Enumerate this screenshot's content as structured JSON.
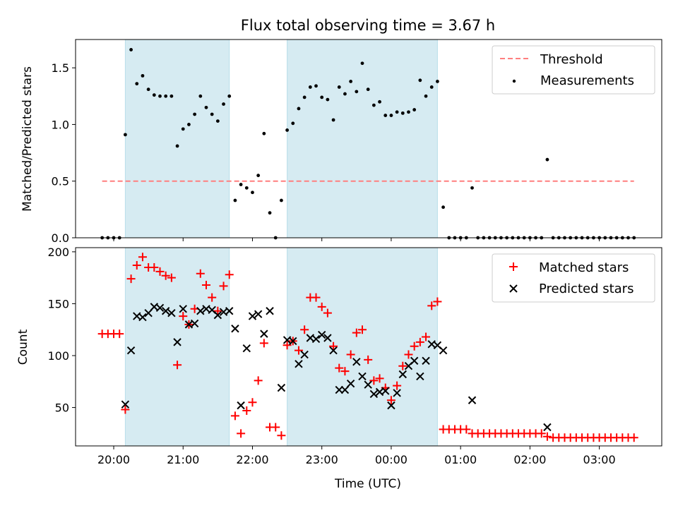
{
  "chart_data": [
    {
      "type": "scatter",
      "title": "Flux total observing time = 3.67 h",
      "ylabel": "Matched/Predicted stars",
      "ylim": [
        0,
        1.75
      ],
      "yticks": [
        "0.0",
        "0.5",
        "1.0",
        "1.5"
      ],
      "xlim_hours": [
        19.45,
        27.9
      ],
      "threshold": {
        "name": "Threshold",
        "value": 0.5,
        "x_start": "19:50",
        "x_end": "03:30",
        "color": "#ff7f7f"
      },
      "shaded_intervals": [
        [
          "20:10",
          "21:40"
        ],
        [
          "22:30",
          "00:40"
        ]
      ],
      "legend": {
        "placement": "top-right",
        "entries": [
          "Threshold",
          "Measurements"
        ]
      },
      "series": [
        {
          "name": "Measurements",
          "marker": "dot",
          "color": "#000000",
          "points": [
            [
              "19:50",
              0
            ],
            [
              "19:55",
              0
            ],
            [
              "20:00",
              0
            ],
            [
              "20:05",
              0
            ],
            [
              "20:10",
              0.91
            ],
            [
              "20:15",
              1.66
            ],
            [
              "20:20",
              1.36
            ],
            [
              "20:25",
              1.43
            ],
            [
              "20:30",
              1.31
            ],
            [
              "20:35",
              1.26
            ],
            [
              "20:40",
              1.25
            ],
            [
              "20:45",
              1.25
            ],
            [
              "20:50",
              1.25
            ],
            [
              "20:55",
              0.81
            ],
            [
              "21:00",
              0.96
            ],
            [
              "21:05",
              1.0
            ],
            [
              "21:10",
              1.09
            ],
            [
              "21:15",
              1.25
            ],
            [
              "21:20",
              1.15
            ],
            [
              "21:25",
              1.09
            ],
            [
              "21:30",
              1.03
            ],
            [
              "21:35",
              1.18
            ],
            [
              "21:40",
              1.25
            ],
            [
              "21:45",
              0.33
            ],
            [
              "21:50",
              0.47
            ],
            [
              "21:55",
              0.44
            ],
            [
              "22:00",
              0.4
            ],
            [
              "22:05",
              0.55
            ],
            [
              "22:10",
              0.92
            ],
            [
              "22:15",
              0.22
            ],
            [
              "22:20",
              0
            ],
            [
              "22:25",
              0.33
            ],
            [
              "22:30",
              0.95
            ],
            [
              "22:35",
              1.01
            ],
            [
              "22:40",
              1.14
            ],
            [
              "22:45",
              1.24
            ],
            [
              "22:50",
              1.33
            ],
            [
              "22:55",
              1.34
            ],
            [
              "23:00",
              1.24
            ],
            [
              "23:05",
              1.22
            ],
            [
              "23:10",
              1.04
            ],
            [
              "23:15",
              1.33
            ],
            [
              "23:20",
              1.27
            ],
            [
              "23:25",
              1.38
            ],
            [
              "23:30",
              1.29
            ],
            [
              "23:35",
              1.54
            ],
            [
              "23:40",
              1.31
            ],
            [
              "23:45",
              1.17
            ],
            [
              "23:50",
              1.2
            ],
            [
              "23:55",
              1.08
            ],
            [
              "00:00",
              1.08
            ],
            [
              "00:05",
              1.11
            ],
            [
              "00:10",
              1.1
            ],
            [
              "00:15",
              1.11
            ],
            [
              "00:20",
              1.13
            ],
            [
              "00:25",
              1.39
            ],
            [
              "00:30",
              1.25
            ],
            [
              "00:35",
              1.33
            ],
            [
              "00:40",
              1.38
            ],
            [
              "00:45",
              0.27
            ],
            [
              "00:50",
              0
            ],
            [
              "00:55",
              0
            ],
            [
              "01:00",
              0
            ],
            [
              "01:05",
              0
            ],
            [
              "01:10",
              0.44
            ],
            [
              "01:15",
              0
            ],
            [
              "01:20",
              0
            ],
            [
              "01:25",
              0
            ],
            [
              "01:30",
              0
            ],
            [
              "01:35",
              0
            ],
            [
              "01:40",
              0
            ],
            [
              "01:45",
              0
            ],
            [
              "01:50",
              0
            ],
            [
              "01:55",
              0
            ],
            [
              "02:00",
              0
            ],
            [
              "02:05",
              0
            ],
            [
              "02:10",
              0
            ],
            [
              "02:15",
              0.69
            ],
            [
              "02:20",
              0
            ],
            [
              "02:25",
              0
            ],
            [
              "02:30",
              0
            ],
            [
              "02:35",
              0
            ],
            [
              "02:40",
              0
            ],
            [
              "02:45",
              0
            ],
            [
              "02:50",
              0
            ],
            [
              "02:55",
              0
            ],
            [
              "03:00",
              0
            ],
            [
              "03:05",
              0
            ],
            [
              "03:10",
              0
            ],
            [
              "03:15",
              0
            ],
            [
              "03:20",
              0
            ],
            [
              "03:25",
              0
            ],
            [
              "03:30",
              0
            ]
          ]
        }
      ]
    },
    {
      "type": "scatter",
      "xlabel": "Time (UTC)",
      "ylabel": "Count",
      "ylim": [
        13,
        204
      ],
      "yticks": [
        "50",
        "100",
        "150",
        "200"
      ],
      "xticks": [
        "20:00",
        "21:00",
        "22:00",
        "23:00",
        "00:00",
        "01:00",
        "02:00",
        "03:00"
      ],
      "xlim_hours": [
        19.45,
        27.9
      ],
      "shaded_intervals": [
        [
          "20:10",
          "21:40"
        ],
        [
          "22:30",
          "00:40"
        ]
      ],
      "legend": {
        "placement": "top-right",
        "entries": [
          "Matched stars",
          "Predicted stars"
        ]
      },
      "series": [
        {
          "name": "Matched stars",
          "marker": "plus",
          "color": "#ff0000",
          "points": [
            [
              "19:50",
              121
            ],
            [
              "19:55",
              121
            ],
            [
              "20:00",
              121
            ],
            [
              "20:05",
              121
            ],
            [
              "20:10",
              48
            ],
            [
              "20:15",
              174
            ],
            [
              "20:20",
              187
            ],
            [
              "20:25",
              195
            ],
            [
              "20:30",
              185
            ],
            [
              "20:35",
              185
            ],
            [
              "20:40",
              181
            ],
            [
              "20:45",
              177
            ],
            [
              "20:50",
              175
            ],
            [
              "20:55",
              91
            ],
            [
              "21:00",
              138
            ],
            [
              "21:05",
              130
            ],
            [
              "21:10",
              145
            ],
            [
              "21:15",
              179
            ],
            [
              "21:20",
              168
            ],
            [
              "21:25",
              156
            ],
            [
              "21:30",
              143
            ],
            [
              "21:35",
              167
            ],
            [
              "21:40",
              178
            ],
            [
              "21:45",
              42
            ],
            [
              "21:50",
              25
            ],
            [
              "21:55",
              47
            ],
            [
              "22:00",
              55
            ],
            [
              "22:05",
              76
            ],
            [
              "22:10",
              112
            ],
            [
              "22:15",
              31
            ],
            [
              "22:20",
              31
            ],
            [
              "22:25",
              23
            ],
            [
              "22:30",
              110
            ],
            [
              "22:35",
              114
            ],
            [
              "22:40",
              105
            ],
            [
              "22:45",
              125
            ],
            [
              "22:50",
              156
            ],
            [
              "22:55",
              156
            ],
            [
              "23:00",
              147
            ],
            [
              "23:05",
              141
            ],
            [
              "23:10",
              109
            ],
            [
              "23:15",
              88
            ],
            [
              "23:20",
              85
            ],
            [
              "23:25",
              101
            ],
            [
              "23:30",
              122
            ],
            [
              "23:35",
              125
            ],
            [
              "23:40",
              96
            ],
            [
              "23:45",
              76
            ],
            [
              "23:50",
              78
            ],
            [
              "23:55",
              69
            ],
            [
              "00:00",
              57
            ],
            [
              "00:05",
              71
            ],
            [
              "00:10",
              90
            ],
            [
              "00:15",
              101
            ],
            [
              "00:20",
              109
            ],
            [
              "00:25",
              113
            ],
            [
              "00:30",
              118
            ],
            [
              "00:35",
              148
            ],
            [
              "00:40",
              152
            ],
            [
              "00:45",
              29
            ],
            [
              "00:50",
              29
            ],
            [
              "00:55",
              29
            ],
            [
              "01:00",
              29
            ],
            [
              "01:05",
              29
            ],
            [
              "01:10",
              25
            ],
            [
              "01:15",
              25
            ],
            [
              "01:20",
              25
            ],
            [
              "01:25",
              25
            ],
            [
              "01:30",
              25
            ],
            [
              "01:35",
              25
            ],
            [
              "01:40",
              25
            ],
            [
              "01:45",
              25
            ],
            [
              "01:50",
              25
            ],
            [
              "01:55",
              25
            ],
            [
              "02:00",
              25
            ],
            [
              "02:05",
              25
            ],
            [
              "02:10",
              25
            ],
            [
              "02:15",
              22
            ],
            [
              "02:20",
              21
            ],
            [
              "02:25",
              21
            ],
            [
              "02:30",
              21
            ],
            [
              "02:35",
              21
            ],
            [
              "02:40",
              21
            ],
            [
              "02:45",
              21
            ],
            [
              "02:50",
              21
            ],
            [
              "02:55",
              21
            ],
            [
              "03:00",
              21
            ],
            [
              "03:05",
              21
            ],
            [
              "03:10",
              21
            ],
            [
              "03:15",
              21
            ],
            [
              "03:20",
              21
            ],
            [
              "03:25",
              21
            ],
            [
              "03:30",
              21
            ]
          ]
        },
        {
          "name": "Predicted stars",
          "marker": "x",
          "color": "#000000",
          "points": [
            [
              "20:10",
              53
            ],
            [
              "20:15",
              105
            ],
            [
              "20:20",
              138
            ],
            [
              "20:25",
              137
            ],
            [
              "20:30",
              141
            ],
            [
              "20:35",
              147
            ],
            [
              "20:40",
              146
            ],
            [
              "20:45",
              143
            ],
            [
              "20:50",
              141
            ],
            [
              "20:55",
              113
            ],
            [
              "21:00",
              145
            ],
            [
              "21:05",
              130
            ],
            [
              "21:10",
              131
            ],
            [
              "21:15",
              143
            ],
            [
              "21:20",
              145
            ],
            [
              "21:25",
              144
            ],
            [
              "21:30",
              139
            ],
            [
              "21:35",
              142
            ],
            [
              "21:40",
              143
            ],
            [
              "21:45",
              126
            ],
            [
              "21:50",
              52
            ],
            [
              "21:55",
              107
            ],
            [
              "22:00",
              138
            ],
            [
              "22:05",
              140
            ],
            [
              "22:10",
              121
            ],
            [
              "22:15",
              143
            ],
            [
              "22:25",
              69
            ],
            [
              "22:30",
              115
            ],
            [
              "22:35",
              114
            ],
            [
              "22:40",
              92
            ],
            [
              "22:45",
              101
            ],
            [
              "22:50",
              117
            ],
            [
              "22:55",
              116
            ],
            [
              "23:00",
              120
            ],
            [
              "23:05",
              117
            ],
            [
              "23:10",
              105
            ],
            [
              "23:15",
              67
            ],
            [
              "23:20",
              67
            ],
            [
              "23:25",
              73
            ],
            [
              "23:30",
              94
            ],
            [
              "23:35",
              80
            ],
            [
              "23:40",
              72
            ],
            [
              "23:45",
              63
            ],
            [
              "23:50",
              65
            ],
            [
              "23:55",
              66
            ],
            [
              "00:00",
              52
            ],
            [
              "00:05",
              64
            ],
            [
              "00:10",
              82
            ],
            [
              "00:15",
              90
            ],
            [
              "00:20",
              95
            ],
            [
              "00:25",
              80
            ],
            [
              "00:30",
              95
            ],
            [
              "00:35",
              111
            ],
            [
              "00:40",
              110
            ],
            [
              "00:45",
              105
            ],
            [
              "01:10",
              57
            ],
            [
              "02:15",
              31
            ]
          ]
        }
      ]
    }
  ]
}
